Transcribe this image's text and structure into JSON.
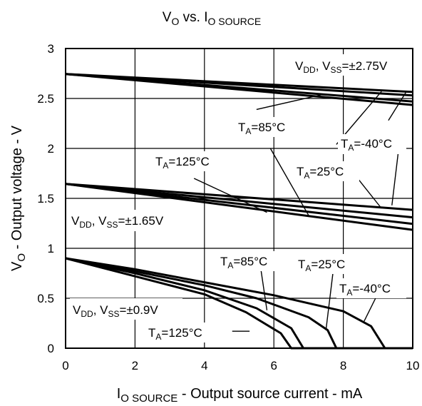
{
  "chart_data": {
    "type": "line",
    "title": {
      "main": "V",
      "main_sub": "O",
      "vs": " vs. I",
      "vs_sub": "O SOURCE"
    },
    "xlabel": {
      "main": "I",
      "sub": "O SOURCE",
      "rest": " - Output source current - mA"
    },
    "ylabel": {
      "main": "V",
      "sub": "O",
      "rest": " - Output voltage - V"
    },
    "xlim": [
      0,
      10
    ],
    "ylim": [
      0,
      3
    ],
    "xticks": [
      "0",
      "2",
      "4",
      "6",
      "8",
      "10"
    ],
    "yticks": [
      "0",
      "0.5",
      "1",
      "1.5",
      "2",
      "2.5",
      "3"
    ],
    "grid": true,
    "groups": [
      {
        "label": {
          "a": "V",
          "a_sub": "DD",
          "b": ", V",
          "b_sub": "SS",
          "c": "=±2.75V"
        },
        "series": [
          {
            "name": "T_A=-40°C",
            "x": [
              0,
              10
            ],
            "y": [
              2.745,
              2.565
            ]
          },
          {
            "name": "T_A=25°C",
            "x": [
              0,
              10
            ],
            "y": [
              2.745,
              2.53
            ]
          },
          {
            "name": "T_A=85°C",
            "x": [
              0,
              10
            ],
            "y": [
              2.745,
              2.47
            ]
          },
          {
            "name": "T_A=125°C",
            "x": [
              0,
              10
            ],
            "y": [
              2.745,
              2.435
            ]
          }
        ]
      },
      {
        "label": {
          "a": "V",
          "a_sub": "DD",
          "b": ", V",
          "b_sub": "SS",
          "c": "=±1.65V"
        },
        "series": [
          {
            "name": "T_A=-40°C",
            "x": [
              0,
              10
            ],
            "y": [
              1.645,
              1.385
            ]
          },
          {
            "name": "T_A=25°C",
            "x": [
              0,
              10
            ],
            "y": [
              1.645,
              1.31
            ]
          },
          {
            "name": "T_A=85°C",
            "x": [
              0,
              10
            ],
            "y": [
              1.645,
              1.245
            ]
          },
          {
            "name": "T_A=125°C",
            "x": [
              0,
              10
            ],
            "y": [
              1.645,
              1.185
            ]
          }
        ]
      },
      {
        "label": {
          "a": "V",
          "a_sub": "DD",
          "b": ", V",
          "b_sub": "SS",
          "c": "=±0.9V"
        },
        "series": [
          {
            "name": "T_A=-40°C",
            "x": [
              0,
              2,
              4,
              6,
              8,
              8.8,
              9.2,
              10
            ],
            "y": [
              0.9,
              0.79,
              0.66,
              0.53,
              0.37,
              0.22,
              0,
              0
            ]
          },
          {
            "name": "T_A=25°C",
            "x": [
              0,
              2,
              4,
              5.5,
              7,
              7.55,
              7.8,
              10
            ],
            "y": [
              0.9,
              0.77,
              0.63,
              0.5,
              0.31,
              0.18,
              0,
              0
            ]
          },
          {
            "name": "T_A=85°C",
            "x": [
              0,
              2,
              4,
              5.5,
              6.5,
              6.85,
              10
            ],
            "y": [
              0.9,
              0.75,
              0.58,
              0.4,
              0.2,
              0,
              0
            ]
          },
          {
            "name": "T_A=125°C",
            "x": [
              0,
              2,
              4,
              5.2,
              6.2,
              6.5,
              10
            ],
            "y": [
              0.9,
              0.72,
              0.54,
              0.36,
              0.15,
              0,
              0
            ]
          }
        ]
      }
    ],
    "annotations": [
      {
        "t": "T",
        "s": "A",
        "r": "=85°C"
      },
      {
        "t": "T",
        "s": "A",
        "r": "=-40°C"
      },
      {
        "t": "T",
        "s": "A",
        "r": "=125°C"
      },
      {
        "t": "T",
        "s": "A",
        "r": "=25°C"
      },
      {
        "t": "T",
        "s": "A",
        "r": "=85°C"
      },
      {
        "t": "T",
        "s": "A",
        "r": "=25°C"
      },
      {
        "t": "T",
        "s": "A",
        "r": "=-40°C"
      },
      {
        "t": "T",
        "s": "A",
        "r": "=125°C"
      }
    ]
  }
}
